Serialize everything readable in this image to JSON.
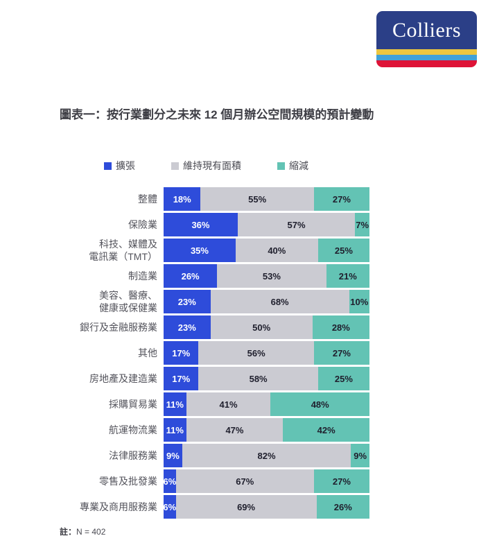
{
  "logo": {
    "text": "Colliers",
    "colors": {
      "navy": "#2B3F87",
      "yellow": "#EDC63E",
      "lightblue": "#41A1D8",
      "red": "#DE1337"
    }
  },
  "title": "圖表一：按行業劃分之未來 12 個月辦公空間規模的預計變動",
  "note": {
    "label": "註：",
    "value": "N = 402"
  },
  "chart_data": {
    "type": "bar",
    "orientation": "horizontal",
    "stacked": true,
    "legend_position": "top",
    "grid": false,
    "value_suffix": "%",
    "categories": [
      "整體",
      "保險業",
      "科技、媒體及\n電訊業（TMT）",
      "制造業",
      "美容、醫療、\n健康或保健業",
      "銀行及金融服務業",
      "其他",
      "房地產及建造業",
      "採購貿易業",
      "航運物流業",
      "法律服務業",
      "零售及批發業",
      "專業及商用服務業"
    ],
    "series": [
      {
        "name": "擴張",
        "color": "#2E4CDA",
        "text_color": "#FFFFFF",
        "values": [
          18,
          36,
          35,
          26,
          23,
          23,
          17,
          17,
          11,
          11,
          9,
          6,
          6
        ]
      },
      {
        "name": "維持現有面積",
        "color": "#CBCBD2",
        "text_color": "#20202E",
        "values": [
          55,
          57,
          40,
          53,
          68,
          50,
          56,
          58,
          41,
          47,
          82,
          67,
          69
        ]
      },
      {
        "name": "縮減",
        "color": "#63C3B4",
        "text_color": "#20202E",
        "values": [
          27,
          7,
          25,
          21,
          10,
          28,
          27,
          25,
          48,
          42,
          9,
          27,
          26
        ]
      }
    ]
  }
}
